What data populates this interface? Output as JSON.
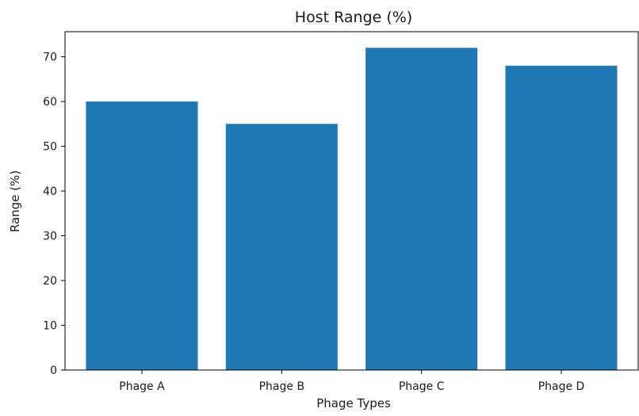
{
  "chart_data": {
    "type": "bar",
    "title": "Host Range (%)",
    "xlabel": "Phage Types",
    "ylabel": "Range (%)",
    "categories": [
      "Phage A",
      "Phage B",
      "Phage C",
      "Phage D"
    ],
    "values": [
      60,
      55,
      72,
      68
    ],
    "ylim": [
      0,
      75.6
    ],
    "yticks": [
      0,
      10,
      20,
      30,
      40,
      50,
      60,
      70
    ],
    "grid": false,
    "bar_color": "#1f77b4"
  }
}
